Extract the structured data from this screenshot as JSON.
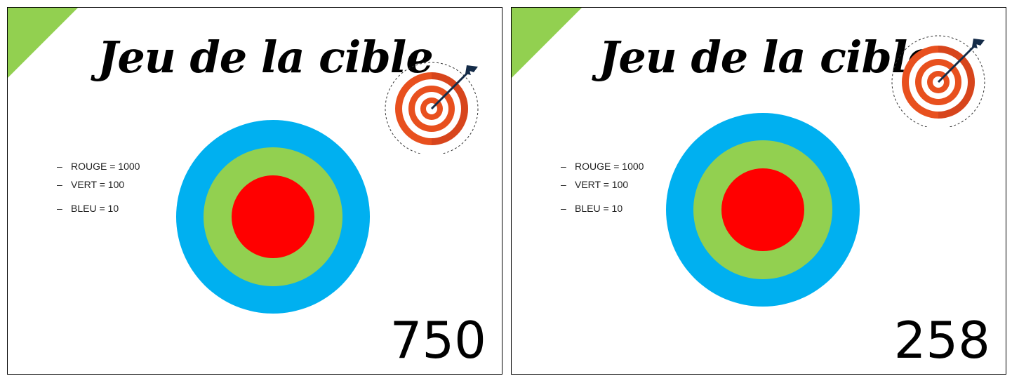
{
  "slides": [
    {
      "title": "Jeu de la cible",
      "legend": [
        "ROUGE = 1000",
        "VERT = 100",
        "BLEU = 10"
      ],
      "score": "750"
    },
    {
      "title": "Jeu de la cible",
      "legend": [
        "ROUGE = 1000",
        "VERT = 100",
        "BLEU = 10"
      ],
      "score": "258"
    }
  ],
  "legend_bullet": "–",
  "colors": {
    "corner": "#92d050",
    "ring_blue": "#00b0f0",
    "ring_green": "#92d050",
    "center_red": "#ff0000",
    "icon_orange": "#e8501e",
    "icon_dark_red": "#b8321a",
    "arrow_navy": "#142b48"
  },
  "icons": [
    "dart-target-icon"
  ]
}
